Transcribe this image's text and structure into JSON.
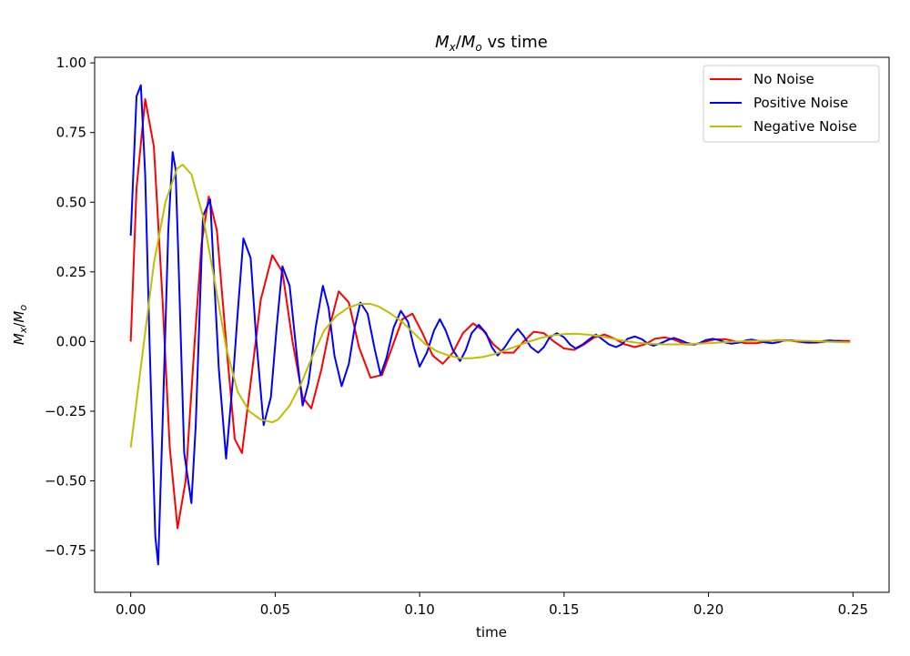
{
  "chart_data": {
    "type": "line",
    "title": "M_x/M_o vs time",
    "xlabel": "time",
    "ylabel": "M_x/M_o",
    "xlim": [
      -0.0125,
      0.2625
    ],
    "ylim": [
      -0.9,
      1.02
    ],
    "xticks": [
      0.0,
      0.05,
      0.1,
      0.15,
      0.2,
      0.25
    ],
    "xtick_labels": [
      "0.00",
      "0.05",
      "0.10",
      "0.15",
      "0.20",
      "0.25"
    ],
    "yticks": [
      -0.75,
      -0.5,
      -0.25,
      0.0,
      0.25,
      0.5,
      0.75,
      1.0
    ],
    "ytick_labels": [
      "−0.75",
      "−0.50",
      "−0.25",
      "0.00",
      "0.25",
      "0.50",
      "0.75",
      "1.00"
    ],
    "legend_position": "top-right",
    "grid": false,
    "series": [
      {
        "name": "No Noise",
        "color": "#ff0000",
        "x": [
          0.0,
          0.002,
          0.005,
          0.008,
          0.011,
          0.0135,
          0.0162,
          0.019,
          0.022,
          0.0245,
          0.027,
          0.0298,
          0.033,
          0.036,
          0.0385,
          0.0415,
          0.045,
          0.049,
          0.0525,
          0.056,
          0.0595,
          0.0625,
          0.066,
          0.0695,
          0.072,
          0.0755,
          0.079,
          0.083,
          0.087,
          0.0905,
          0.094,
          0.0975,
          0.101,
          0.1045,
          0.108,
          0.1115,
          0.115,
          0.1185,
          0.122,
          0.1255,
          0.129,
          0.1325,
          0.136,
          0.1395,
          0.143,
          0.1465,
          0.15,
          0.1535,
          0.157,
          0.1605,
          0.164,
          0.1675,
          0.171,
          0.1745,
          0.178,
          0.1815,
          0.185,
          0.1885,
          0.192,
          0.1955,
          0.199,
          0.2025,
          0.206,
          0.2095,
          0.213,
          0.2165,
          0.22,
          0.2235,
          0.227,
          0.2305,
          0.234,
          0.2375,
          0.241,
          0.2445,
          0.249
        ],
        "values": [
          0.0,
          0.55,
          0.87,
          0.7,
          0.15,
          -0.38,
          -0.67,
          -0.5,
          -0.02,
          0.35,
          0.52,
          0.4,
          0.0,
          -0.35,
          -0.4,
          -0.15,
          0.15,
          0.31,
          0.25,
          0.0,
          -0.2,
          -0.24,
          -0.1,
          0.08,
          0.18,
          0.14,
          -0.02,
          -0.13,
          -0.12,
          -0.02,
          0.08,
          0.1,
          0.03,
          -0.05,
          -0.08,
          -0.04,
          0.03,
          0.065,
          0.04,
          -0.01,
          -0.04,
          -0.04,
          0.0,
          0.035,
          0.03,
          0.0,
          -0.025,
          -0.03,
          -0.01,
          0.015,
          0.025,
          0.01,
          -0.01,
          -0.02,
          -0.01,
          0.01,
          0.015,
          0.005,
          -0.01,
          -0.01,
          0.0,
          0.008,
          0.008,
          0.0,
          -0.006,
          -0.006,
          0.0,
          0.005,
          0.005,
          0.0,
          -0.004,
          -0.004,
          0.0,
          0.003,
          0.002
        ]
      },
      {
        "name": "Positive Noise",
        "color": "#0000ff",
        "x": [
          0.0,
          0.002,
          0.0035,
          0.005,
          0.0065,
          0.0085,
          0.0095,
          0.011,
          0.013,
          0.0145,
          0.0155,
          0.0165,
          0.0185,
          0.021,
          0.0225,
          0.0235,
          0.025,
          0.0275,
          0.029,
          0.0305,
          0.033,
          0.0355,
          0.037,
          0.039,
          0.0415,
          0.0435,
          0.046,
          0.0485,
          0.0505,
          0.0525,
          0.055,
          0.0575,
          0.0595,
          0.0615,
          0.064,
          0.0665,
          0.0685,
          0.0705,
          0.073,
          0.0755,
          0.0775,
          0.0795,
          0.082,
          0.0845,
          0.0865,
          0.0885,
          0.091,
          0.0935,
          0.096,
          0.098,
          0.1,
          0.1025,
          0.105,
          0.107,
          0.109,
          0.1115,
          0.114,
          0.116,
          0.118,
          0.1205,
          0.123,
          0.125,
          0.127,
          0.1295,
          0.132,
          0.134,
          0.136,
          0.1385,
          0.141,
          0.143,
          0.145,
          0.1475,
          0.15,
          0.152,
          0.154,
          0.1565,
          0.159,
          0.161,
          0.163,
          0.1655,
          0.168,
          0.17,
          0.172,
          0.1745,
          0.177,
          0.179,
          0.181,
          0.1835,
          0.186,
          0.188,
          0.19,
          0.1925,
          0.195,
          0.197,
          0.199,
          0.2015,
          0.204,
          0.206,
          0.208,
          0.2105,
          0.213,
          0.215,
          0.217,
          0.2195,
          0.222,
          0.224,
          0.226,
          0.2285,
          0.231,
          0.233,
          0.235,
          0.2375,
          0.24,
          0.242,
          0.244,
          0.2465,
          0.249
        ],
        "values": [
          0.38,
          0.88,
          0.92,
          0.6,
          0.0,
          -0.7,
          -0.8,
          -0.3,
          0.4,
          0.68,
          0.62,
          0.3,
          -0.4,
          -0.58,
          -0.3,
          0.0,
          0.45,
          0.51,
          0.2,
          -0.1,
          -0.42,
          -0.12,
          0.1,
          0.37,
          0.3,
          0.0,
          -0.3,
          -0.2,
          0.05,
          0.27,
          0.2,
          -0.05,
          -0.23,
          -0.15,
          0.05,
          0.2,
          0.12,
          -0.05,
          -0.16,
          -0.08,
          0.05,
          0.14,
          0.1,
          -0.03,
          -0.12,
          -0.06,
          0.05,
          0.11,
          0.07,
          -0.02,
          -0.09,
          -0.04,
          0.04,
          0.08,
          0.04,
          -0.03,
          -0.07,
          -0.03,
          0.03,
          0.06,
          0.03,
          -0.02,
          -0.05,
          -0.02,
          0.02,
          0.045,
          0.02,
          -0.02,
          -0.04,
          -0.02,
          0.015,
          0.03,
          0.015,
          -0.01,
          -0.025,
          -0.01,
          0.01,
          0.025,
          0.01,
          -0.01,
          -0.02,
          -0.01,
          0.01,
          0.018,
          0.008,
          -0.008,
          -0.015,
          -0.006,
          0.006,
          0.013,
          0.006,
          -0.005,
          -0.011,
          -0.005,
          0.005,
          0.01,
          0.004,
          -0.004,
          -0.008,
          -0.004,
          0.004,
          0.007,
          0.003,
          -0.003,
          -0.006,
          -0.003,
          0.003,
          0.005,
          0.002,
          -0.002,
          -0.004,
          -0.002,
          0.002,
          0.004,
          0.002,
          -0.001,
          -0.002
        ]
      },
      {
        "name": "Negative Noise",
        "color": "#bfbf00",
        "x": [
          0.0,
          0.004,
          0.008,
          0.012,
          0.016,
          0.018,
          0.021,
          0.025,
          0.029,
          0.033,
          0.037,
          0.041,
          0.045,
          0.049,
          0.051,
          0.055,
          0.059,
          0.063,
          0.067,
          0.071,
          0.075,
          0.079,
          0.083,
          0.086,
          0.09,
          0.094,
          0.098,
          0.102,
          0.106,
          0.11,
          0.114,
          0.118,
          0.122,
          0.126,
          0.13,
          0.134,
          0.138,
          0.142,
          0.146,
          0.15,
          0.154,
          0.158,
          0.162,
          0.166,
          0.17,
          0.175,
          0.18,
          0.185,
          0.19,
          0.195,
          0.2,
          0.205,
          0.21,
          0.215,
          0.22,
          0.225,
          0.23,
          0.235,
          0.24,
          0.245,
          0.249
        ],
        "values": [
          -0.38,
          -0.05,
          0.28,
          0.5,
          0.62,
          0.635,
          0.6,
          0.45,
          0.22,
          -0.02,
          -0.18,
          -0.25,
          -0.28,
          -0.29,
          -0.28,
          -0.23,
          -0.15,
          -0.05,
          0.04,
          0.09,
          0.12,
          0.135,
          0.135,
          0.125,
          0.1,
          0.07,
          0.03,
          -0.01,
          -0.035,
          -0.05,
          -0.06,
          -0.06,
          -0.055,
          -0.045,
          -0.03,
          -0.015,
          0.0,
          0.013,
          0.022,
          0.027,
          0.028,
          0.025,
          0.02,
          0.012,
          0.004,
          -0.004,
          -0.008,
          -0.01,
          -0.01,
          -0.008,
          -0.006,
          -0.003,
          0.0,
          0.002,
          0.003,
          0.004,
          0.003,
          0.002,
          0.0,
          -0.002,
          -0.003
        ]
      }
    ]
  }
}
